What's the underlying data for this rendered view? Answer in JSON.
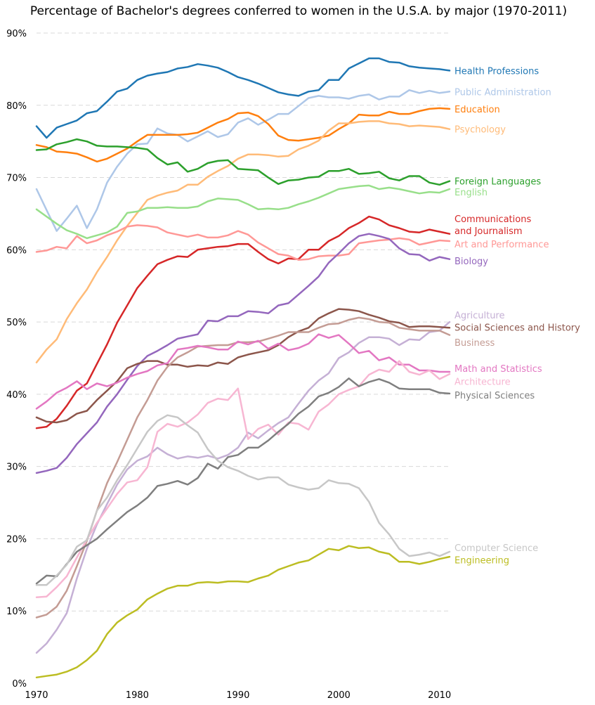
{
  "chart_data": {
    "type": "line",
    "title": "Percentage of Bachelor's degrees conferred to women in the U.S.A. by major (1970-2011)",
    "xlabel": "",
    "ylabel": "",
    "xlim": [
      1970,
      2011
    ],
    "ylim": [
      0,
      90
    ],
    "x_ticks": [
      "1970",
      "1980",
      "1990",
      "2000",
      "2010"
    ],
    "y_ticks": [
      "0%",
      "10%",
      "20%",
      "30%",
      "40%",
      "50%",
      "60%",
      "70%",
      "80%",
      "90%"
    ],
    "grid": true,
    "years": [
      1970,
      1971,
      1972,
      1973,
      1974,
      1975,
      1976,
      1977,
      1978,
      1979,
      1980,
      1981,
      1982,
      1983,
      1984,
      1985,
      1986,
      1987,
      1988,
      1989,
      1990,
      1991,
      1992,
      1993,
      1994,
      1995,
      1996,
      1997,
      1998,
      1999,
      2000,
      2001,
      2002,
      2003,
      2004,
      2005,
      2006,
      2007,
      2008,
      2009,
      2010,
      2011
    ],
    "series": [
      {
        "name": "Health Professions",
        "color": "#1f77b4",
        "values": [
          77.1,
          75.5,
          76.9,
          77.4,
          77.9,
          78.9,
          79.2,
          80.5,
          81.9,
          82.3,
          83.5,
          84.1,
          84.4,
          84.6,
          85.1,
          85.3,
          85.7,
          85.5,
          85.2,
          84.6,
          83.9,
          83.5,
          83.0,
          82.4,
          81.8,
          81.5,
          81.3,
          81.9,
          82.1,
          83.5,
          83.5,
          85.1,
          85.8,
          86.5,
          86.5,
          86.0,
          85.9,
          85.4,
          85.2,
          85.1,
          85.0,
          84.8
        ],
        "label_value": 84.8
      },
      {
        "name": "Public Administration",
        "color": "#aec7e8",
        "values": [
          68.4,
          65.5,
          62.6,
          64.3,
          66.1,
          63.0,
          65.6,
          69.3,
          71.5,
          73.3,
          74.6,
          74.7,
          76.8,
          76.1,
          75.9,
          75.0,
          75.7,
          76.4,
          75.6,
          76.0,
          77.6,
          78.2,
          77.3,
          78.0,
          78.8,
          78.8,
          79.9,
          81.0,
          81.3,
          81.1,
          81.1,
          80.9,
          81.3,
          81.5,
          80.8,
          81.2,
          81.2,
          82.1,
          81.7,
          82.0,
          81.7,
          81.9
        ],
        "label_value": 81.9
      },
      {
        "name": "Education",
        "color": "#ff7f0e",
        "values": [
          74.5,
          74.2,
          73.6,
          73.5,
          73.3,
          72.8,
          72.2,
          72.6,
          73.3,
          74.0,
          75.0,
          75.9,
          75.9,
          75.9,
          75.9,
          76.0,
          76.2,
          76.9,
          77.6,
          78.1,
          78.9,
          79.0,
          78.5,
          77.4,
          75.8,
          75.2,
          75.1,
          75.3,
          75.5,
          75.8,
          76.7,
          77.5,
          78.7,
          78.6,
          78.6,
          79.1,
          78.8,
          78.8,
          79.2,
          79.5,
          79.6,
          79.5
        ],
        "label_value": 79.5
      },
      {
        "name": "Psychology",
        "color": "#ffbb78",
        "values": [
          44.4,
          46.2,
          47.6,
          50.4,
          52.6,
          54.5,
          56.9,
          59.0,
          61.3,
          63.3,
          65.1,
          66.9,
          67.5,
          67.9,
          68.2,
          69.0,
          69.0,
          70.1,
          70.9,
          71.6,
          72.6,
          73.2,
          73.2,
          73.1,
          72.9,
          73.0,
          73.9,
          74.4,
          75.1,
          76.5,
          77.5,
          77.5,
          77.7,
          77.8,
          77.8,
          77.5,
          77.4,
          77.1,
          77.2,
          77.1,
          77.0,
          76.7
        ],
        "label_value": 76.7
      },
      {
        "name": "Foreign Languages",
        "color": "#2ca02c",
        "values": [
          73.8,
          73.9,
          74.6,
          74.9,
          75.3,
          75.0,
          74.4,
          74.3,
          74.3,
          74.2,
          74.1,
          73.9,
          72.7,
          71.8,
          72.1,
          70.8,
          71.2,
          72.0,
          72.3,
          72.4,
          71.2,
          71.1,
          71.0,
          70.0,
          69.1,
          69.6,
          69.7,
          70.0,
          70.1,
          70.9,
          70.9,
          71.2,
          70.5,
          70.6,
          70.8,
          69.9,
          69.6,
          70.2,
          70.2,
          69.3,
          69.0,
          69.5
        ],
        "label_value": 69.5
      },
      {
        "name": "English",
        "color": "#98df8a",
        "values": [
          65.6,
          64.6,
          63.6,
          62.7,
          62.2,
          61.6,
          62.0,
          62.4,
          63.2,
          65.1,
          65.3,
          65.8,
          65.8,
          65.9,
          65.8,
          65.8,
          66.0,
          66.7,
          67.1,
          67.0,
          66.9,
          66.3,
          65.6,
          65.7,
          65.6,
          65.8,
          66.3,
          66.7,
          67.2,
          67.8,
          68.4,
          68.6,
          68.8,
          68.9,
          68.4,
          68.6,
          68.4,
          68.1,
          67.8,
          68.0,
          67.9,
          68.4
        ],
        "label_value": 68.0
      },
      {
        "name": "Communications\nand Journalism",
        "color": "#d62728",
        "values": [
          35.3,
          35.5,
          36.6,
          38.4,
          40.5,
          41.5,
          44.2,
          46.9,
          49.9,
          52.3,
          54.7,
          56.4,
          58.0,
          58.6,
          59.1,
          59.0,
          60.0,
          60.2,
          60.4,
          60.5,
          60.8,
          60.8,
          59.7,
          58.7,
          58.1,
          58.8,
          58.7,
          60.0,
          60.0,
          61.2,
          61.9,
          63.0,
          63.7,
          64.6,
          64.2,
          63.4,
          63.0,
          62.5,
          62.4,
          62.8,
          62.5,
          62.2
        ],
        "label_value": 63.5
      },
      {
        "name": "Art and Performance",
        "color": "#ff9896",
        "values": [
          59.7,
          59.9,
          60.4,
          60.2,
          61.9,
          60.9,
          61.3,
          62.0,
          62.5,
          63.2,
          63.4,
          63.3,
          63.1,
          62.4,
          62.1,
          61.8,
          62.1,
          61.7,
          61.7,
          62.0,
          62.6,
          62.1,
          61.0,
          60.2,
          59.4,
          59.2,
          58.6,
          58.7,
          59.1,
          59.2,
          59.2,
          59.4,
          60.9,
          61.1,
          61.3,
          61.4,
          61.6,
          61.4,
          60.7,
          61.0,
          61.3,
          61.2
        ],
        "label_value": 60.8
      },
      {
        "name": "Biology",
        "color": "#9467bd",
        "values": [
          29.1,
          29.4,
          29.8,
          31.2,
          33.1,
          34.6,
          36.1,
          38.3,
          40.0,
          42.0,
          43.9,
          45.3,
          46.0,
          46.8,
          47.7,
          48.0,
          48.3,
          50.2,
          50.1,
          50.8,
          50.8,
          51.5,
          51.4,
          51.2,
          52.3,
          52.6,
          53.8,
          55.0,
          56.3,
          58.2,
          59.5,
          60.9,
          61.9,
          62.2,
          61.9,
          61.5,
          60.2,
          59.4,
          59.3,
          58.5,
          59.0,
          58.7
        ],
        "label_value": 58.5
      },
      {
        "name": "Agriculture",
        "color": "#c5b0d5",
        "values": [
          4.2,
          5.5,
          7.4,
          9.7,
          14.5,
          18.6,
          22.0,
          24.8,
          27.5,
          29.6,
          30.8,
          31.4,
          32.6,
          31.7,
          31.1,
          31.4,
          31.2,
          31.5,
          31.1,
          31.6,
          32.6,
          34.7,
          33.9,
          35.0,
          36.0,
          36.8,
          38.7,
          40.5,
          41.9,
          42.9,
          45.0,
          45.8,
          47.1,
          47.9,
          47.9,
          47.7,
          46.8,
          47.6,
          47.5,
          48.6,
          48.8,
          50.0
        ],
        "label_value": 51.0
      },
      {
        "name": "Social Sciences and History",
        "color": "#8c564b",
        "values": [
          36.8,
          36.2,
          36.1,
          36.4,
          37.3,
          37.7,
          39.2,
          40.5,
          41.8,
          43.6,
          44.2,
          44.6,
          44.6,
          44.1,
          44.1,
          43.8,
          44.0,
          43.9,
          44.4,
          44.2,
          45.1,
          45.5,
          45.8,
          46.1,
          46.8,
          47.9,
          48.7,
          49.2,
          50.5,
          51.2,
          51.8,
          51.7,
          51.5,
          51.0,
          50.6,
          50.1,
          49.9,
          49.3,
          49.4,
          49.4,
          49.3,
          49.2
        ],
        "label_value": 49.3
      },
      {
        "name": "Business",
        "color": "#c49c94",
        "values": [
          9.1,
          9.5,
          10.6,
          12.8,
          16.2,
          19.7,
          23.9,
          27.7,
          30.6,
          33.7,
          36.8,
          39.2,
          41.9,
          43.8,
          45.1,
          45.8,
          46.6,
          46.7,
          46.8,
          46.8,
          47.2,
          47.2,
          47.3,
          47.7,
          48.1,
          48.6,
          48.6,
          48.6,
          49.2,
          49.7,
          49.8,
          50.3,
          50.6,
          50.4,
          50.0,
          49.9,
          49.2,
          49.0,
          48.8,
          48.8,
          48.8,
          48.2
        ],
        "label_value": 47.2
      },
      {
        "name": "Math and Statistics",
        "color": "#e377c2",
        "values": [
          38.0,
          39.0,
          40.2,
          40.9,
          41.8,
          40.7,
          41.5,
          41.1,
          41.6,
          42.3,
          42.8,
          43.2,
          44.0,
          44.3,
          46.2,
          46.4,
          46.7,
          46.5,
          46.2,
          46.2,
          47.3,
          46.9,
          47.4,
          46.3,
          47.0,
          46.1,
          46.4,
          47.0,
          48.3,
          47.8,
          48.2,
          47.0,
          45.7,
          46.0,
          44.7,
          45.1,
          44.1,
          44.1,
          43.3,
          43.3,
          43.1,
          43.1
        ],
        "label_value": 43.6
      },
      {
        "name": "Architecture",
        "color": "#f7b6d2",
        "values": [
          11.9,
          12.0,
          13.3,
          14.8,
          17.4,
          19.9,
          22.2,
          24.2,
          26.2,
          27.8,
          28.1,
          29.9,
          34.8,
          35.9,
          35.5,
          36.1,
          37.2,
          38.8,
          39.4,
          39.2,
          40.8,
          33.8,
          35.2,
          35.8,
          34.4,
          36.1,
          35.9,
          35.1,
          37.6,
          38.6,
          40.0,
          40.6,
          41.1,
          42.7,
          43.4,
          43.1,
          44.6,
          43.1,
          42.7,
          43.3,
          42.1,
          42.8
        ],
        "label_value": 41.8
      },
      {
        "name": "Physical Sciences",
        "color": "#7f7f7f",
        "values": [
          13.8,
          14.9,
          14.8,
          16.5,
          18.2,
          19.1,
          20.0,
          21.3,
          22.5,
          23.7,
          24.6,
          25.7,
          27.3,
          27.6,
          28.0,
          27.5,
          28.4,
          30.4,
          29.7,
          31.3,
          31.6,
          32.6,
          32.6,
          33.6,
          34.8,
          35.9,
          37.3,
          38.3,
          39.7,
          40.2,
          41.0,
          42.2,
          41.1,
          41.7,
          42.1,
          41.6,
          40.8,
          40.7,
          40.7,
          40.7,
          40.2,
          40.1
        ],
        "label_value": 39.9
      },
      {
        "name": "Computer Science",
        "color": "#c7c7c7",
        "values": [
          13.6,
          13.6,
          14.9,
          16.4,
          18.9,
          19.8,
          23.9,
          25.7,
          28.1,
          30.2,
          32.5,
          34.8,
          36.3,
          37.1,
          36.8,
          35.7,
          34.7,
          32.4,
          30.8,
          29.9,
          29.4,
          28.7,
          28.2,
          28.5,
          28.5,
          27.5,
          27.1,
          26.8,
          27.0,
          28.1,
          27.7,
          27.6,
          27.0,
          25.1,
          22.2,
          20.6,
          18.6,
          17.6,
          17.8,
          18.1,
          17.6,
          18.2
        ],
        "label_value": 18.8
      },
      {
        "name": "Engineering",
        "color": "#bcbd22",
        "values": [
          0.8,
          1.0,
          1.2,
          1.6,
          2.2,
          3.2,
          4.5,
          6.8,
          8.4,
          9.4,
          10.2,
          11.6,
          12.4,
          13.1,
          13.5,
          13.5,
          13.9,
          14.0,
          13.9,
          14.1,
          14.1,
          14.0,
          14.5,
          14.9,
          15.7,
          16.2,
          16.7,
          17.0,
          17.8,
          18.6,
          18.4,
          19.0,
          18.7,
          18.8,
          18.2,
          17.9,
          16.8,
          16.8,
          16.5,
          16.8,
          17.2,
          17.5
        ],
        "label_value": 17.1
      }
    ]
  }
}
